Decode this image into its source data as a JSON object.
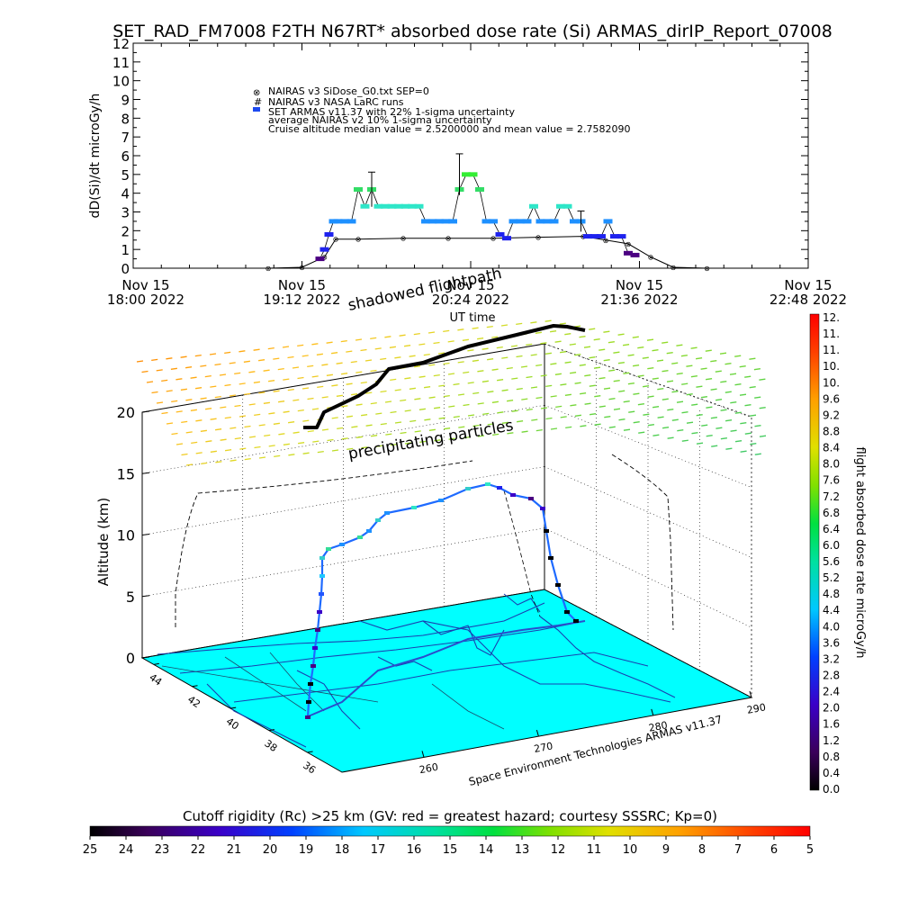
{
  "title": "SET_RAD_FM7008  F2TH N67RT* absorbed dose rate (Si) ARMAS_dirIP_Report_07008",
  "top_chart": {
    "ylabel": "dD(Si)/dt microGy/h",
    "xlabel": "UT time",
    "yticks": [
      "0",
      "1",
      "2",
      "3",
      "4",
      "5",
      "6",
      "7",
      "8",
      "9",
      "10",
      "11",
      "12"
    ],
    "xticks": [
      {
        "line1": "Nov 15",
        "line2": "18:00 2022"
      },
      {
        "line1": "Nov 15",
        "line2": "19:12 2022"
      },
      {
        "line1": "Nov 15",
        "line2": "20:24 2022"
      },
      {
        "line1": "Nov 15",
        "line2": "21:36 2022"
      },
      {
        "line1": "Nov 15",
        "line2": "22:48 2022"
      }
    ],
    "legend": [
      "NAIRAS v3 SiDose_G0.txt SEP=0",
      "NAIRAS v3 NASA LaRC runs",
      "SET ARMAS v11.37 with 22% 1-sigma uncertainty",
      "average NAIRAS v2 10% 1-sigma uncertainty",
      "Cruise altitude median value =    2.5200000 and mean value =    2.7582090"
    ]
  },
  "annotations": {
    "shadowed": "shadowed flightpath",
    "precip": "precipitating particles",
    "credit": "Space Environment Technologies ARMAS v11.37"
  },
  "bottom_chart": {
    "zlabel": "Altitude (km)",
    "zticks": [
      "0",
      "5",
      "10",
      "15",
      "20"
    ],
    "lat_ticks": [
      "44",
      "42",
      "40",
      "38",
      "36"
    ],
    "lon_ticks": [
      "260",
      "270",
      "280",
      "290"
    ]
  },
  "colorbar_right": {
    "label": "flight absorbed dose rate microGy/h",
    "ticks": [
      "12.",
      "11.",
      "11.",
      "10.",
      "10.",
      "9.6",
      "9.2",
      "8.8",
      "8.4",
      "8.0",
      "7.6",
      "7.2",
      "6.8",
      "6.4",
      "6.0",
      "5.6",
      "5.2",
      "4.8",
      "4.4",
      "4.0",
      "3.6",
      "3.2",
      "2.8",
      "2.4",
      "2.0",
      "1.6",
      "1.2",
      "0.8",
      "0.4",
      "0.0"
    ]
  },
  "colorbar_bottom": {
    "label": "Cutoff rigidity (Rc) >25 km (GV: red = greatest hazard; courtesy SSSRC; Kp=0)",
    "ticks": [
      "25",
      "24",
      "23",
      "22",
      "21",
      "20",
      "19",
      "18",
      "17",
      "16",
      "15",
      "14",
      "13",
      "12",
      "11",
      "10",
      "9",
      "8",
      "7",
      "6",
      "5"
    ]
  },
  "chart_data": {
    "type": "scatter",
    "title": "SET_RAD_FM7008  F2TH N67RT* absorbed dose rate (Si) ARMAS_dirIP_Report_07008",
    "xlabel": "UT time",
    "ylabel": "dD(Si)/dt microGy/h",
    "x_range": [
      "2022-11-15 18:00",
      "2022-11-15 23:00"
    ],
    "ylim": [
      0,
      12
    ],
    "series": [
      {
        "name": "SET ARMAS v11.37 with 22% 1-sigma uncertainty",
        "x": [
          "19:23",
          "19:25",
          "19:27",
          "19:29",
          "19:31",
          "19:34",
          "19:37",
          "19:40",
          "19:43",
          "19:46",
          "19:49",
          "19:52",
          "19:55",
          "19:58",
          "20:01",
          "20:04",
          "20:07",
          "20:10",
          "20:13",
          "20:16",
          "20:19",
          "20:22",
          "20:25",
          "20:28",
          "20:31",
          "20:34",
          "20:37",
          "20:40",
          "20:43",
          "20:46",
          "20:49",
          "20:52",
          "20:55",
          "20:58",
          "21:01",
          "21:04",
          "21:07",
          "21:10",
          "21:13",
          "21:16",
          "21:19",
          "21:22",
          "21:25",
          "21:28",
          "21:31",
          "21:34",
          "21:37",
          "21:40",
          "21:43"
        ],
        "y": [
          0.5,
          1.0,
          1.8,
          2.5,
          2.5,
          2.5,
          2.5,
          4.2,
          3.3,
          4.2,
          3.3,
          3.3,
          3.3,
          3.3,
          3.3,
          3.3,
          3.3,
          2.5,
          2.5,
          2.5,
          2.5,
          2.5,
          4.2,
          5.0,
          5.0,
          4.2,
          2.5,
          2.5,
          1.8,
          1.6,
          2.5,
          2.5,
          2.5,
          3.3,
          2.5,
          2.5,
          2.5,
          3.3,
          3.3,
          2.5,
          2.5,
          1.7,
          1.7,
          1.7,
          2.5,
          1.7,
          1.7,
          0.8,
          0.7
        ]
      },
      {
        "name": "NAIRAS v3 SiDose_G0.txt SEP=0",
        "x": [
          "19:00",
          "19:15",
          "19:25",
          "19:30",
          "19:40",
          "20:00",
          "20:20",
          "20:40",
          "21:00",
          "21:20",
          "21:30",
          "21:40",
          "21:50",
          "22:00",
          "22:15"
        ],
        "y": [
          0.0,
          0.05,
          0.6,
          1.55,
          1.55,
          1.6,
          1.6,
          1.6,
          1.65,
          1.7,
          1.5,
          1.3,
          0.6,
          0.05,
          0.0
        ]
      }
    ]
  }
}
